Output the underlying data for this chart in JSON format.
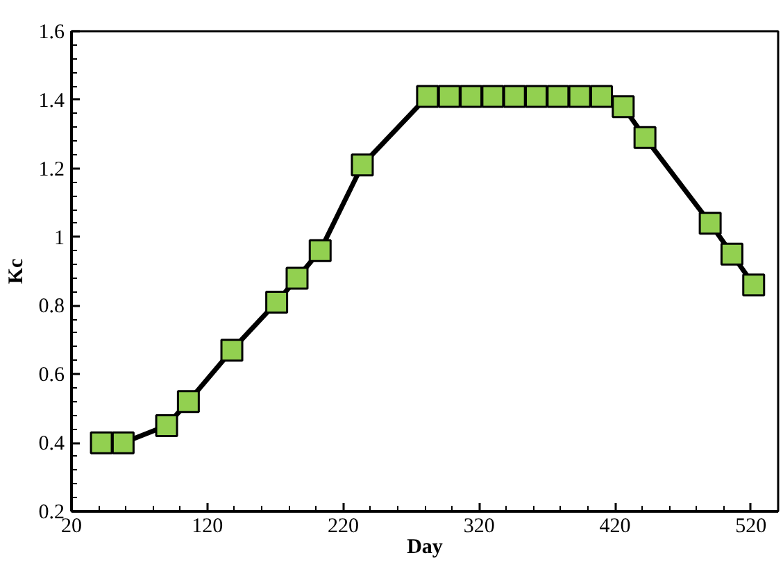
{
  "chart_data": {
    "type": "line",
    "xlabel": "Day",
    "ylabel": "Kc",
    "x": [
      42,
      58,
      90,
      106,
      138,
      171,
      186,
      203,
      234,
      282,
      298,
      314,
      330,
      346,
      362,
      378,
      394,
      410,
      426,
      442,
      490,
      506,
      522
    ],
    "series": [
      {
        "color": "#000000",
        "values": [
          0.4,
          0.4,
          0.45,
          0.52,
          0.67,
          0.81,
          0.88,
          0.96,
          1.21,
          1.41,
          1.41,
          1.41,
          1.41,
          1.41,
          1.41,
          1.41,
          1.41,
          1.41,
          1.38,
          1.29,
          1.04,
          0.95,
          0.86
        ]
      }
    ],
    "marker": "square",
    "line_style": "solid",
    "grid": false,
    "xlim": [
      20,
      540
    ],
    "ylim": [
      0.2,
      1.6
    ],
    "xticks": [
      20,
      120,
      220,
      320,
      420,
      520
    ],
    "yticks": [
      {
        "value": 0.2,
        "label": "0.2"
      },
      {
        "value": 0.4,
        "label": "0.4"
      },
      {
        "value": 0.6,
        "label": "0.6"
      },
      {
        "value": 0.8,
        "label": "0.8"
      },
      {
        "value": 1,
        "label": "1"
      },
      {
        "value": 1.2,
        "label": "1.2"
      },
      {
        "value": 1.4,
        "label": "1.4"
      },
      {
        "value": 1.6,
        "label": "1.6"
      }
    ]
  }
}
